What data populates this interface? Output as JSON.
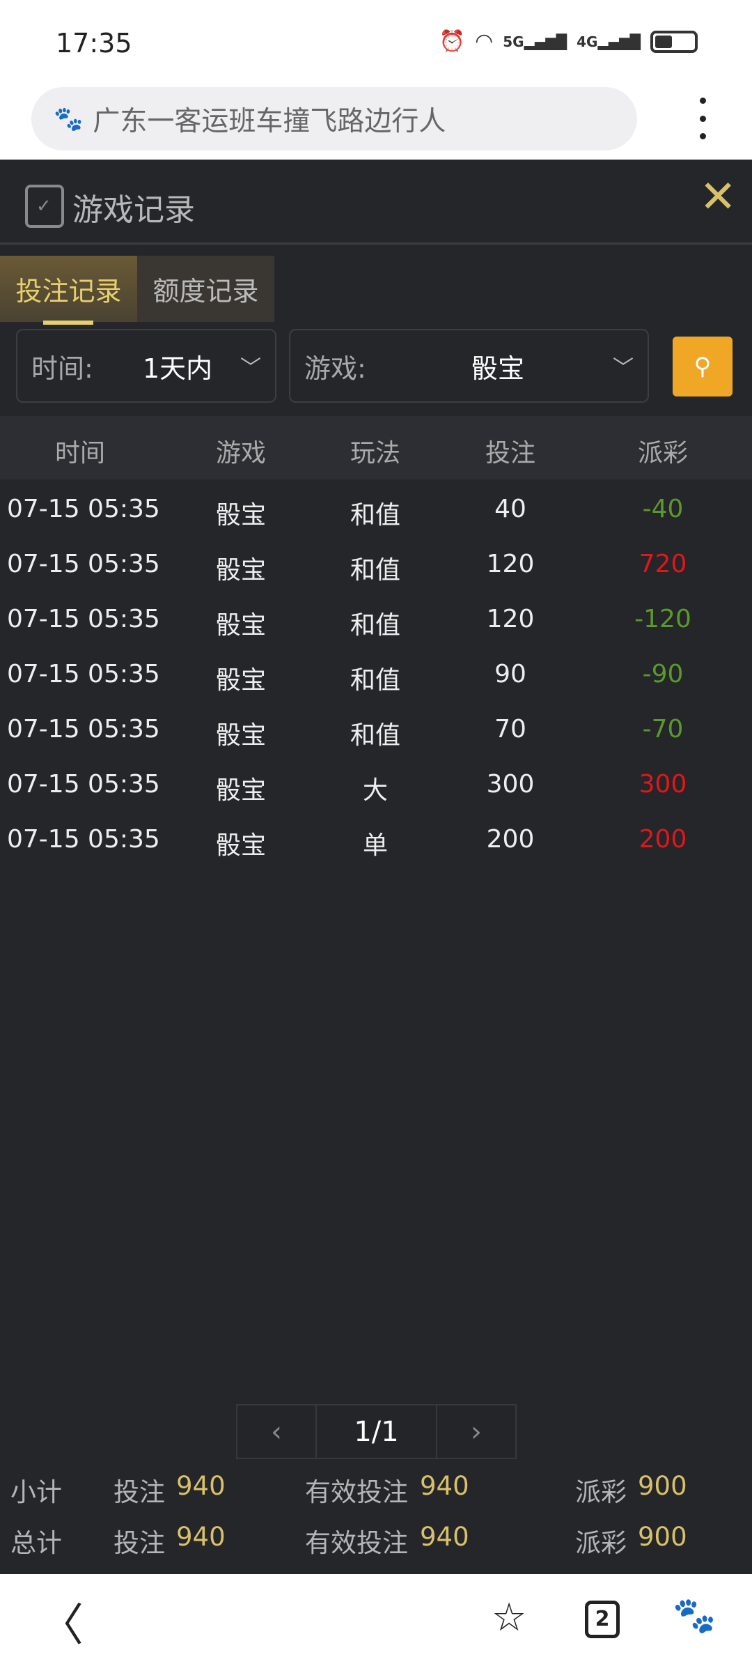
{
  "status_bar": {
    "time": "17:35",
    "icons": [
      "alarm-icon",
      "wifi-icon",
      "5g-signal-icon",
      "4g-signal-icon",
      "battery-icon"
    ],
    "net1": "5G",
    "net2": "4G"
  },
  "browser": {
    "query": "广东一客运班车撞飞路边行人"
  },
  "panel": {
    "title": "游戏记录",
    "tabs": [
      {
        "label": "投注记录",
        "active": true
      },
      {
        "label": "额度记录",
        "active": false
      }
    ]
  },
  "filters": {
    "time_label": "时间:",
    "time_value": "1天内",
    "game_label": "游戏:",
    "game_value": "骰宝"
  },
  "table": {
    "headers": [
      "时间",
      "游戏",
      "玩法",
      "投注",
      "派彩"
    ],
    "rows": [
      {
        "time": "07-15 05:35",
        "game": "骰宝",
        "play": "和值",
        "bet": "40",
        "payout": "-40"
      },
      {
        "time": "07-15 05:35",
        "game": "骰宝",
        "play": "和值",
        "bet": "120",
        "payout": "720"
      },
      {
        "time": "07-15 05:35",
        "game": "骰宝",
        "play": "和值",
        "bet": "120",
        "payout": "-120"
      },
      {
        "time": "07-15 05:35",
        "game": "骰宝",
        "play": "和值",
        "bet": "90",
        "payout": "-90"
      },
      {
        "time": "07-15 05:35",
        "game": "骰宝",
        "play": "和值",
        "bet": "70",
        "payout": "-70"
      },
      {
        "time": "07-15 05:35",
        "game": "骰宝",
        "play": "大",
        "bet": "300",
        "payout": "300"
      },
      {
        "time": "07-15 05:35",
        "game": "骰宝",
        "play": "单",
        "bet": "200",
        "payout": "200"
      }
    ]
  },
  "colors": {
    "win": "#e0171b",
    "loss": "#5a9a2a",
    "accent": "#d8c16a"
  },
  "pagination": {
    "page": "1/1"
  },
  "summary": [
    {
      "label": "小计",
      "bet_label": "投注",
      "bet": "940",
      "valid_label": "有效投注",
      "valid": "940",
      "payout_label": "派彩",
      "payout": "900"
    },
    {
      "label": "总计",
      "bet_label": "投注",
      "bet": "940",
      "valid_label": "有效投注",
      "valid": "940",
      "payout_label": "派彩",
      "payout": "900"
    }
  ],
  "bottom_nav": {
    "tabs_count": "2"
  }
}
